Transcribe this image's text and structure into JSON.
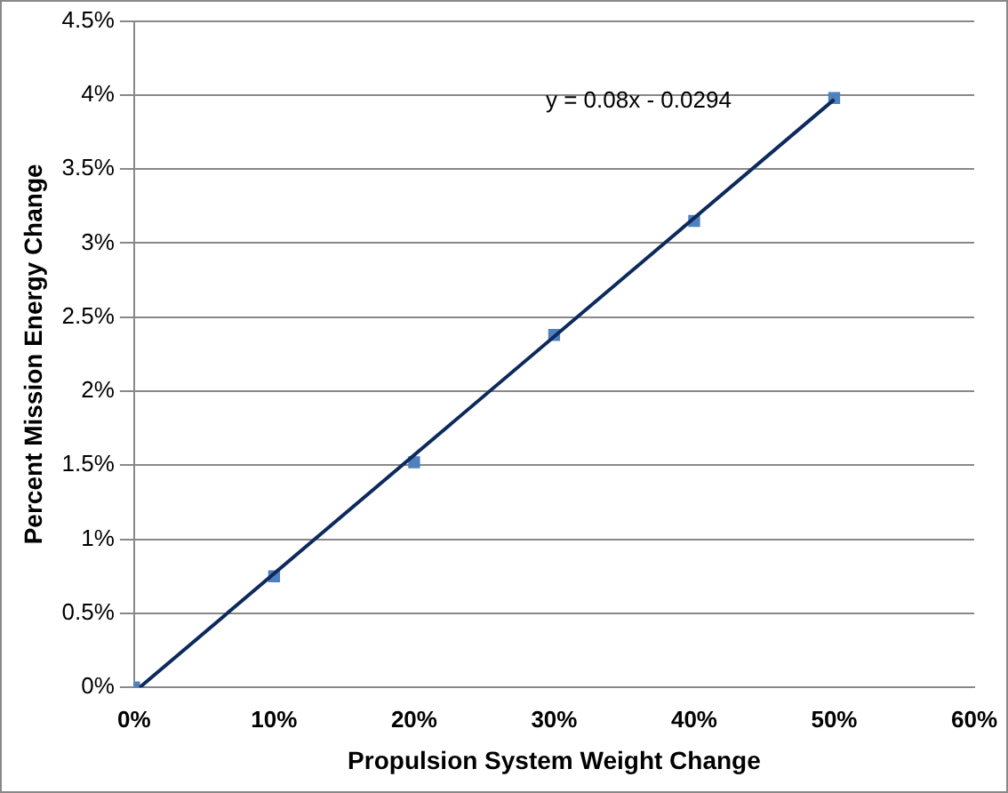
{
  "chart_data": {
    "type": "scatter",
    "xlabel": "Propulsion System Weight Change",
    "ylabel": "Percent Mission Energy Change",
    "x": [
      0,
      10,
      20,
      30,
      40,
      50
    ],
    "series": [
      {
        "color": "#4f81bd",
        "values": [
          0,
          0.75,
          1.52,
          2.38,
          3.15,
          3.98
        ],
        "marker": "square"
      },
      {
        "type": "line",
        "color": "#0d2a5c",
        "x": [
          0.4,
          50
        ],
        "values": [
          0,
          3.97
        ],
        "marker": "none"
      }
    ],
    "xlim": [
      0,
      60
    ],
    "xticks": [
      {
        "value": 0,
        "label": "0%"
      },
      {
        "value": 10,
        "label": "10%"
      },
      {
        "value": 20,
        "label": "20%"
      },
      {
        "value": 30,
        "label": "30%"
      },
      {
        "value": 40,
        "label": "40%"
      },
      {
        "value": 50,
        "label": "50%"
      },
      {
        "value": 60,
        "label": "60%"
      }
    ],
    "ylim": [
      0,
      4.5
    ],
    "yticks": [
      {
        "value": 0,
        "label": "0%"
      },
      {
        "value": 0.5,
        "label": "0.5%"
      },
      {
        "value": 1,
        "label": "1%"
      },
      {
        "value": 1.5,
        "label": "1.5%"
      },
      {
        "value": 2,
        "label": "2%"
      },
      {
        "value": 2.5,
        "label": "2.5%"
      },
      {
        "value": 3,
        "label": "3%"
      },
      {
        "value": 3.5,
        "label": "3.5%"
      },
      {
        "value": 4,
        "label": "4%"
      },
      {
        "value": 4.5,
        "label": "4.5%"
      }
    ],
    "grid": "y",
    "legend": false,
    "annotations": [
      "y = 0.08x - 0.0294"
    ]
  }
}
